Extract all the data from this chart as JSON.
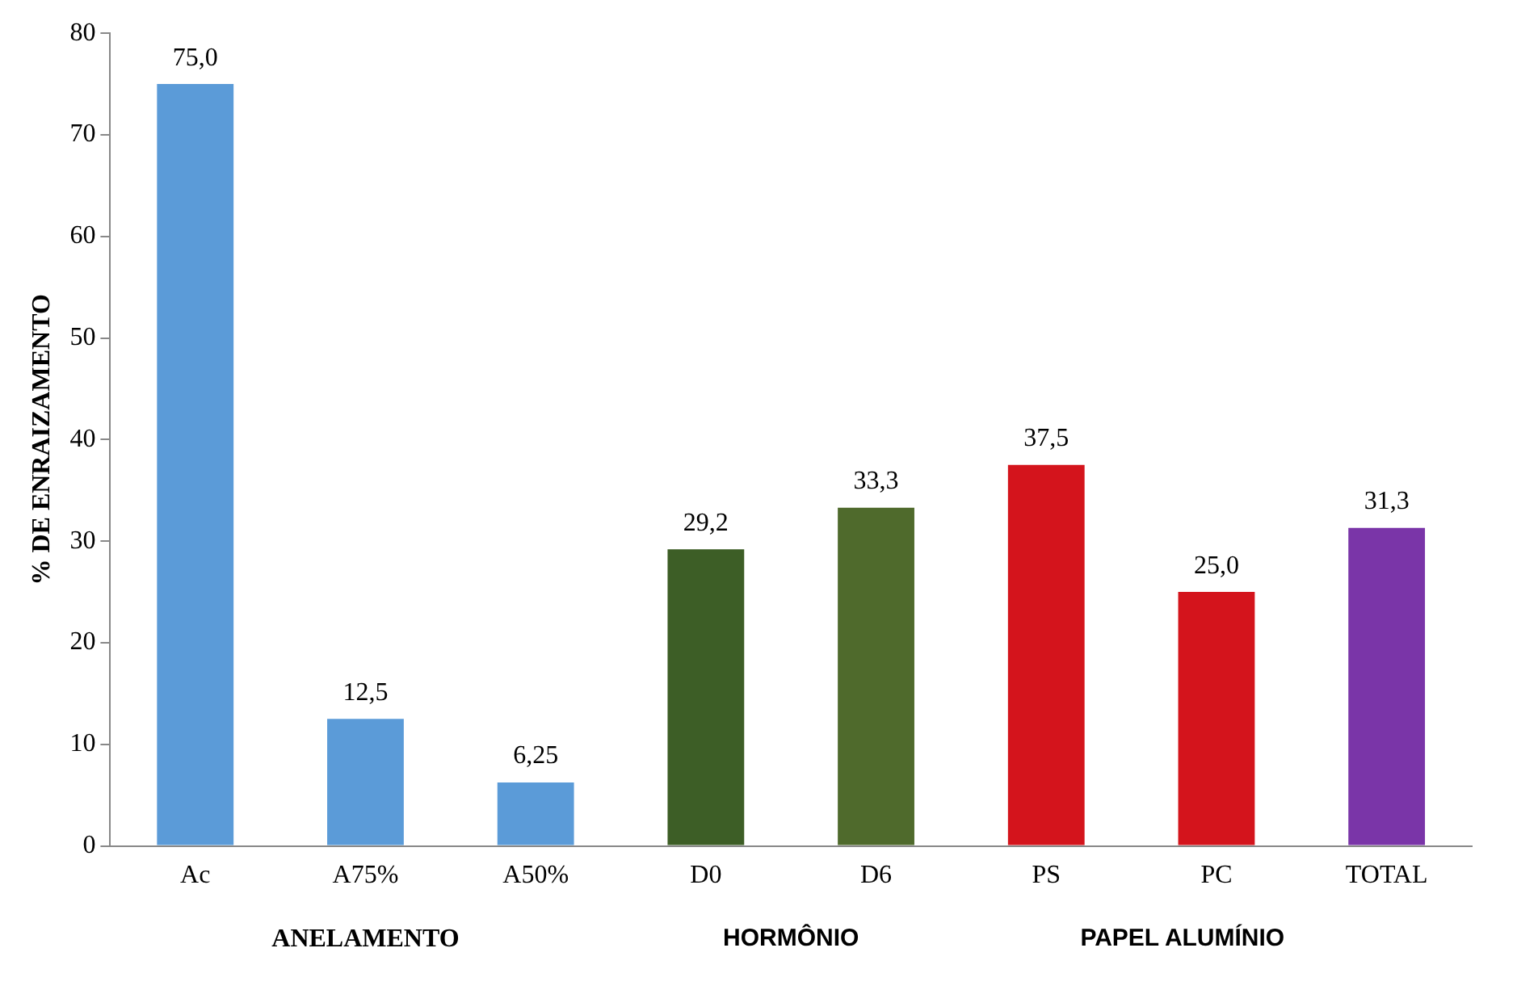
{
  "chart_data": {
    "type": "bar",
    "ylabel": "% DE ENRAIZAMENTO",
    "categories": [
      "Ac",
      "A75%",
      "A50%",
      "D0",
      "D6",
      "PS",
      "PC",
      "TOTAL"
    ],
    "values": [
      75.0,
      12.5,
      6.25,
      29.2,
      33.3,
      37.5,
      25.0,
      31.3
    ],
    "colors": [
      "#5b9bd8",
      "#5b9bd8",
      "#5b9bd8",
      "#3d5e26",
      "#4f6a2c",
      "#d4141c",
      "#d4141c",
      "#7a35a8"
    ],
    "value_labels": [
      "75,0",
      "12,5",
      "6,25",
      "29,2",
      "33,3",
      "37,5",
      "25,0",
      "31,3"
    ],
    "ylim": [
      0,
      80
    ],
    "yticks": [
      0,
      10,
      20,
      30,
      40,
      50,
      60,
      70,
      80
    ],
    "grid": false,
    "legend": false,
    "annotations": [
      "ANELAMENTO",
      "HORMÔNIO",
      "PAPEL ALUMÍNIO"
    ]
  }
}
